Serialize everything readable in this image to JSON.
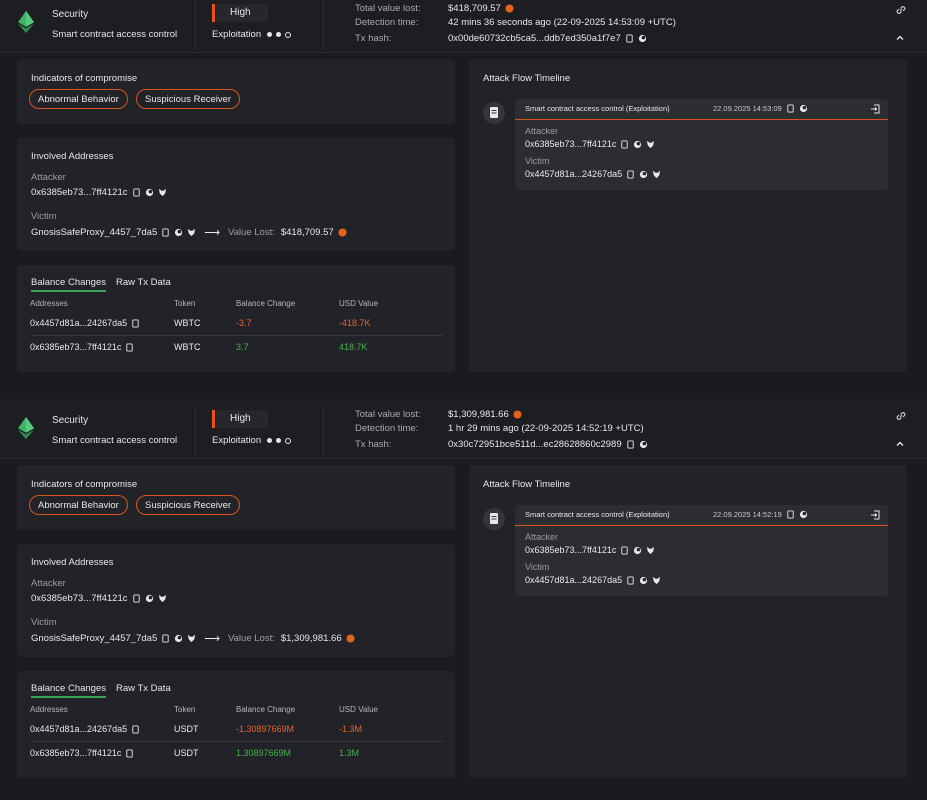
{
  "colors": {
    "accent": "#e5531c",
    "positive": "#45b04c",
    "negative": "#e5632f",
    "background": "#1a1b1f",
    "card": "#222328"
  },
  "incidents": [
    {
      "category": "Security",
      "title": "Smart contract access control",
      "severity": "High",
      "stage": "Exploitation",
      "stage_progress": 2,
      "total_value_lost_label": "Total value lost:",
      "total_value_lost": "$418,709.57",
      "detection_time_label": "Detection time:",
      "detection_time": "42 mins 36 seconds ago (22-09-2025 14:53:09 +UTC)",
      "tx_hash_label": "Tx hash:",
      "tx_hash": "0x00de60732cb5ca5...ddb7ed350a1f7e7",
      "ioc_title": "Indicators of compromise",
      "ioc_tags": [
        "Abnormal Behavior",
        "Suspicious Receiver"
      ],
      "involved_title": "Involved Addresses",
      "attacker_label": "Attacker",
      "attacker": "0x6385eb73...7ff4121c",
      "victim_label": "Victim",
      "victim": "GnosisSafeProxy_4457_7da5",
      "value_lost_label": "Value Lost:",
      "value_lost": "$418,709.57",
      "tabs": [
        "Balance Changes",
        "Raw Tx Data"
      ],
      "columns": [
        "Addresses",
        "Token",
        "Balance Change",
        "USD Value"
      ],
      "rows": [
        {
          "address": "0x4457d81a...24267da5",
          "token": "WBTC",
          "change": "-3.7",
          "usd": "-418.7K"
        },
        {
          "address": "0x6385eb73...7ff4121c",
          "token": "WBTC",
          "change": "3.7",
          "usd": "418.7K"
        }
      ],
      "timeline_title": "Attack Flow Timeline",
      "timeline_event": "Smart contract access control (Exploitation)",
      "timeline_date": "22.09.2025 14:53:09",
      "tl_attacker": "0x6385eb73...7ff4121c",
      "tl_victim": "0x4457d81a...24267da5"
    },
    {
      "category": "Security",
      "title": "Smart contract access control",
      "severity": "High",
      "stage": "Exploitation",
      "stage_progress": 2,
      "total_value_lost_label": "Total value lost:",
      "total_value_lost": "$1,309,981.66",
      "detection_time_label": "Detection time:",
      "detection_time": "1 hr 29 mins ago (22-09-2025 14:52:19 +UTC)",
      "tx_hash_label": "Tx hash:",
      "tx_hash": "0x30c72951bce511d...ec28628860c2989",
      "ioc_title": "Indicators of compromise",
      "ioc_tags": [
        "Abnormal Behavior",
        "Suspicious Receiver"
      ],
      "involved_title": "Involved Addresses",
      "attacker_label": "Attacker",
      "attacker": "0x6385eb73...7ff4121c",
      "victim_label": "Victim",
      "victim": "GnosisSafeProxy_4457_7da5",
      "value_lost_label": "Value Lost:",
      "value_lost": "$1,309,981.66",
      "tabs": [
        "Balance Changes",
        "Raw Tx Data"
      ],
      "columns": [
        "Addresses",
        "Token",
        "Balance Change",
        "USD Value"
      ],
      "rows": [
        {
          "address": "0x4457d81a...24267da5",
          "token": "USDT",
          "change": "-1.30897669M",
          "usd": "-1.3M"
        },
        {
          "address": "0x6385eb73...7ff4121c",
          "token": "USDT",
          "change": "1.30897669M",
          "usd": "1.3M"
        }
      ],
      "timeline_title": "Attack Flow Timeline",
      "timeline_event": "Smart contract access control (Exploitation)",
      "timeline_date": "22.09.2025 14:52:19",
      "tl_attacker": "0x6385eb73...7ff4121c",
      "tl_victim": "0x4457d81a...24267da5"
    }
  ]
}
